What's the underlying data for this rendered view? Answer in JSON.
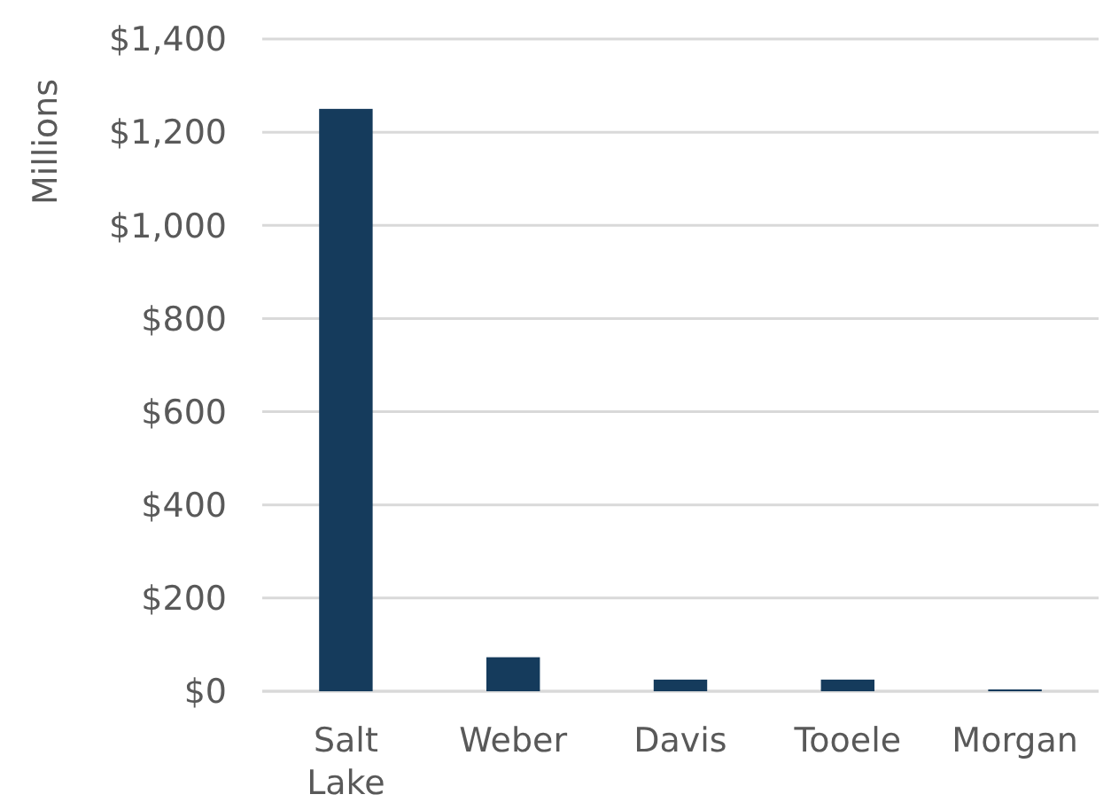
{
  "chart_data": {
    "type": "bar",
    "ylabel": "Millions",
    "categories": [
      "Salt Lake",
      "Weber",
      "Davis",
      "Tooele",
      "Morgan"
    ],
    "values": [
      1250,
      73,
      25,
      25,
      4
    ],
    "color": "#153b5c",
    "ylim": [
      0,
      1400
    ],
    "yticks": [
      {
        "value": 0,
        "label": "$0"
      },
      {
        "value": 200,
        "label": "$200"
      },
      {
        "value": 400,
        "label": "$400"
      },
      {
        "value": 600,
        "label": "$600"
      },
      {
        "value": 800,
        "label": "$800"
      },
      {
        "value": 1000,
        "label": "$1,000"
      },
      {
        "value": 1200,
        "label": "$1,200"
      },
      {
        "value": 1400,
        "label": "$1,400"
      }
    ],
    "grid": "y"
  }
}
